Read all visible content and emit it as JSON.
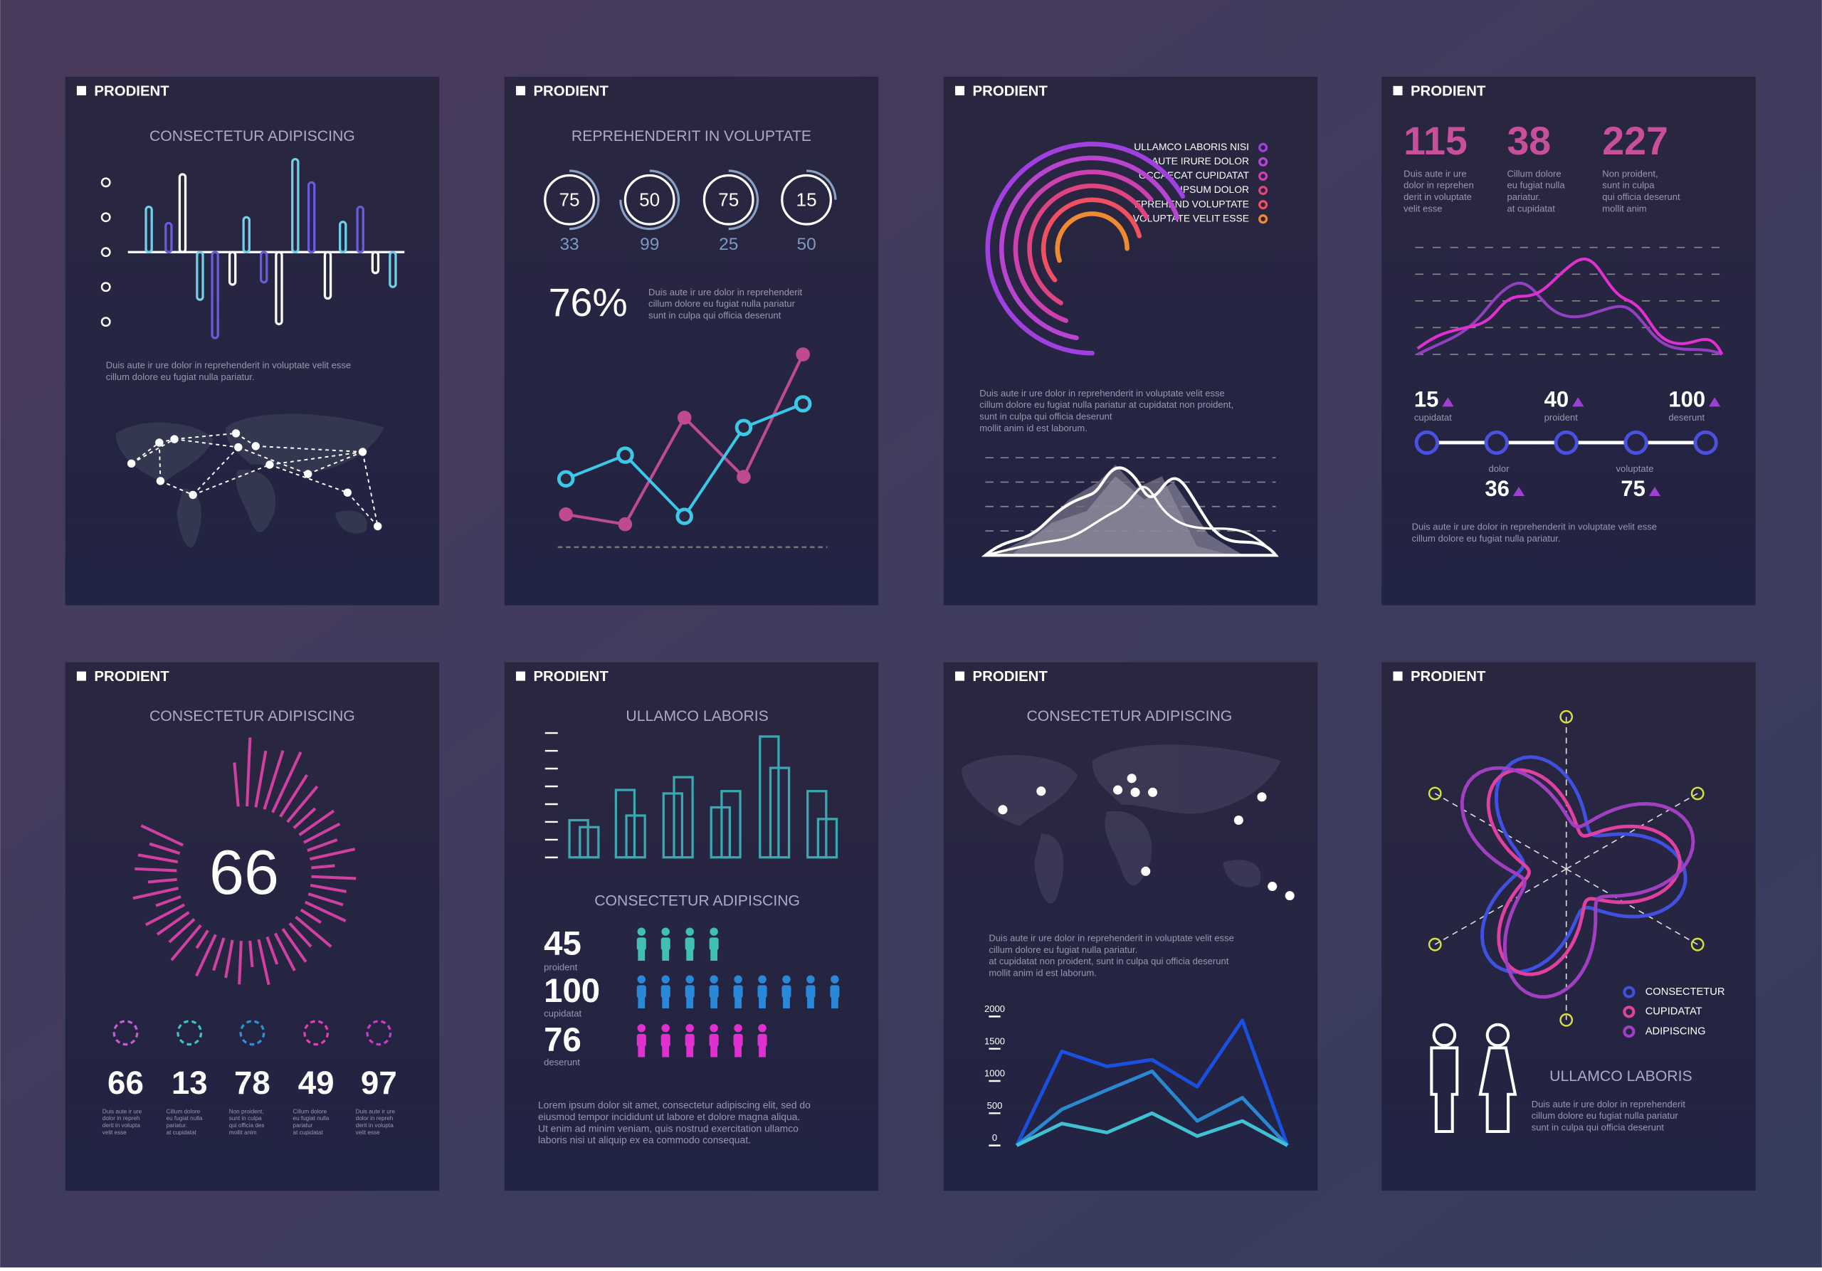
{
  "panels": [
    {
      "brand": "PRODIENT",
      "title": "CONSECTETUR ADIPISCING",
      "bars": {
        "values": [
          39,
          25,
          67,
          -41,
          -74,
          -28,
          30,
          -26,
          -62,
          80,
          60,
          -40,
          26,
          39,
          -18,
          -30
        ],
        "colors": [
          "#6fd0e8",
          "#6a5ae0",
          "#ffffff"
        ]
      },
      "text": [
        "Duis aute ir ure dolor in reprehenderit in voluptate velit esse",
        "cillum dolore eu fugiat nulla pariatur."
      ]
    },
    {
      "brand": "PRODIENT",
      "title": "REPREHENDERIT IN VOLUPTATE",
      "gauges": [
        {
          "value": 75,
          "sub": 33
        },
        {
          "value": 50,
          "sub": 99
        },
        {
          "value": 75,
          "sub": 25
        },
        {
          "value": 15,
          "sub": 50
        }
      ],
      "percent": {
        "value": 76,
        "label": "76%"
      },
      "text": [
        "Duis aute ir ure dolor in reprehenderit",
        "cillum dolore eu fugiat nulla pariatur",
        "sunt in culpa qui officia deserunt"
      ],
      "lines": [
        {
          "color": "#c04a90",
          "values": [
            16,
            11,
            65,
            35,
            97
          ]
        },
        {
          "color": "#3cc8e8",
          "values": [
            34,
            46,
            15,
            60,
            72
          ]
        }
      ]
    },
    {
      "brand": "PRODIENT",
      "legend": [
        "ULLAMCO LABORIS NISI",
        "AUTE IRURE DOLOR",
        "OCCAECAT CUPIDATAT",
        "IPSUM DOLOR",
        "EPREHEND VOLUPTATE",
        "VOLUPTATE VELIT ESSE"
      ],
      "colors": [
        "#a040e0",
        "#b844d0",
        "#cc40b0",
        "#e04480",
        "#f05060",
        "#f08a30"
      ],
      "text": [
        "Duis aute ir ure dolor in reprehenderit in voluptate velit esse",
        "cillum dolore eu fugiat nulla pariatur at cupidatat non proident,",
        "sunt in culpa qui officia deserunt",
        "mollit anim id est laborum."
      ]
    },
    {
      "brand": "PRODIENT",
      "stats": [
        {
          "value": 115,
          "text": [
            "Duis aute ir ure",
            "dolor in reprehen",
            "derit in voluptate",
            "velit esse"
          ]
        },
        {
          "value": 38,
          "text": [
            "Cillum dolore",
            "eu fugiat nulla",
            "pariatur.",
            "at cupidatat"
          ]
        },
        {
          "value": 227,
          "text": [
            "Non proident,",
            "sunt in culpa",
            "qui officia deserunt",
            "mollit anim"
          ]
        }
      ],
      "timeline": [
        {
          "value": 15,
          "caption": "cupidatat"
        },
        {
          "value": 40,
          "caption": "proident"
        },
        {
          "value": 100,
          "caption": "deserunt"
        },
        {
          "value": 36,
          "caption": "dolor"
        },
        {
          "value": 75,
          "caption": "voluptate"
        }
      ],
      "text": [
        "Duis aute ir ure dolor in reprehenderit in voluptate velit esse",
        "cillum dolore eu fugiat nulla pariatur."
      ]
    },
    {
      "brand": "PRODIENT",
      "title": "CONSECTETUR ADIPISCING",
      "big": 66,
      "stats": [
        {
          "value": 66,
          "color": "#c060d0",
          "text": [
            "Duis aute ir ure",
            "dolor in repreh",
            "derit in volupta",
            "velit esse"
          ]
        },
        {
          "value": 13,
          "color": "#40c0c0",
          "text": [
            "Cillum dolore",
            "eu fugiat nulla",
            "pariatur.",
            "at cupidatat"
          ]
        },
        {
          "value": 78,
          "color": "#3090d0",
          "text": [
            "Non proident,",
            "sunt in culpa",
            "qui officia des",
            "mollit anim"
          ]
        },
        {
          "value": 49,
          "color": "#e040b0",
          "text": [
            "Cillum dolore",
            "eu fugiat nulla",
            "pariatur",
            "at cupidatat"
          ]
        },
        {
          "value": 97,
          "color": "#c040c0",
          "text": [
            "Duis aute ir ure",
            "dolor in repreh",
            "derit in volupta",
            "velit esse"
          ]
        }
      ]
    },
    {
      "brand": "PRODIENT",
      "title": "ULLAMCO LABORIS",
      "subtitle": "CONSECTETUR ADIPISCING",
      "people": [
        {
          "value": 45,
          "caption": "proident",
          "color": "#40c0b0"
        },
        {
          "value": 100,
          "caption": "cupidatat",
          "color": "#2a88d8"
        },
        {
          "value": 76,
          "caption": "deserunt",
          "color": "#e030d0"
        }
      ],
      "text": [
        "Lorem ipsum dolor sit amet, consectetur adipiscing elit, sed do",
        "eiusmod tempor incididunt ut labore et dolore magna aliqua.",
        "Ut enim ad minim veniam, quis nostrud exercitation ullamco",
        "laboris nisi ut aliquip ex ea commodo consequat."
      ]
    },
    {
      "brand": "PRODIENT",
      "title": "CONSECTETUR ADIPISCING",
      "text": [
        "Duis aute ir ure dolor in reprehenderit in voluptate velit esse",
        "cillum dolore eu fugiat nulla pariatur.",
        "at cupidatat non proident, sunt in culpa qui officia deserunt",
        "mollit anim id est laborum."
      ],
      "chart": {
        "type": "line",
        "ylim": [
          0,
          2000
        ],
        "yticks": [
          0,
          500,
          1000,
          1500,
          2000
        ],
        "series": [
          {
            "color": "#1a50e0",
            "values": [
              0,
              1460,
              1225,
              1330,
              910,
              1940,
              0
            ]
          },
          {
            "color": "#2a88d0",
            "values": [
              0,
              560,
              860,
              1150,
              380,
              740,
              0
            ]
          },
          {
            "color": "#40c0d0",
            "values": [
              0,
              340,
              200,
              500,
              145,
              380,
              0
            ]
          }
        ]
      }
    },
    {
      "brand": "PRODIENT",
      "legend": [
        "CONSECTETUR",
        "CUPIDATAT",
        "ADIPISCING"
      ],
      "colors": [
        "#4050e0",
        "#e040a0",
        "#a040c0"
      ],
      "title": "ULLAMCO LABORIS",
      "text": [
        "Duis aute ir ure dolor in reprehenderit",
        "cillum dolore eu fugiat nulla pariatur",
        "sunt in culpa qui officia deserunt"
      ]
    }
  ]
}
